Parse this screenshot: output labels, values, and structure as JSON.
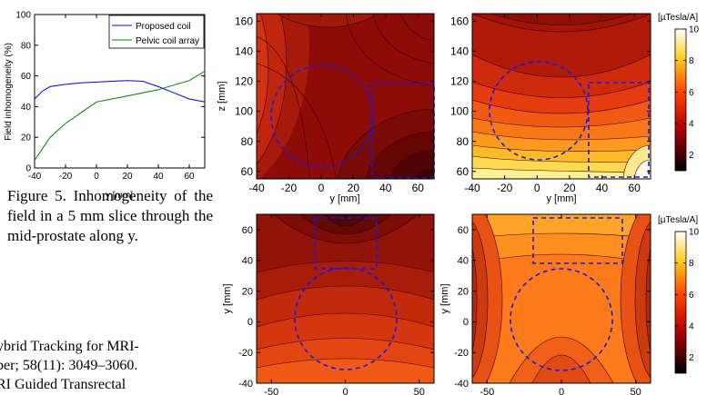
{
  "chart_data": [
    {
      "type": "line",
      "title": "",
      "xlabel": "y [mm]",
      "ylabel": "Field inhomogeneity (%)",
      "xlim": [
        -40,
        70
      ],
      "ylim": [
        0,
        100
      ],
      "x_ticks": [
        "-40",
        "-20",
        "0",
        "20",
        "40",
        "60"
      ],
      "y_ticks": [
        "0",
        "20",
        "40",
        "60",
        "80",
        "100"
      ],
      "legend_position": "top-right",
      "series": [
        {
          "name": "Proposed coil",
          "color": "#0000ff",
          "x": [
            -40,
            -35,
            -30,
            -20,
            -10,
            0,
            10,
            20,
            30,
            40,
            50,
            60,
            70
          ],
          "y": [
            45,
            50,
            53,
            54.5,
            55.5,
            56,
            56.5,
            57,
            56.5,
            53,
            49,
            45,
            43
          ]
        },
        {
          "name": "Pelvic coil array",
          "color": "#008000",
          "x": [
            -40,
            -30,
            -20,
            -10,
            0,
            10,
            20,
            30,
            40,
            50,
            60,
            70
          ],
          "y": [
            5,
            20,
            29,
            36,
            43,
            45,
            47,
            49,
            51,
            54,
            57,
            63
          ]
        }
      ]
    },
    {
      "type": "heatmap",
      "title": "",
      "xlabel": "y [mm]",
      "ylabel": "z [mm]",
      "xlim": [
        -40,
        70
      ],
      "ylim": [
        55,
        165
      ],
      "x_ticks": [
        "-40",
        "-20",
        "0",
        "20",
        "40",
        "60"
      ],
      "y_ticks": [
        "60",
        "80",
        "100",
        "120",
        "140",
        "160"
      ],
      "overlays": [
        "dashed circle",
        "dashed rectangle"
      ]
    },
    {
      "type": "heatmap",
      "title": "",
      "xlabel": "y [mm]",
      "ylabel": "",
      "xlim": [
        -40,
        70
      ],
      "ylim": [
        55,
        165
      ],
      "x_ticks": [
        "-40",
        "-20",
        "0",
        "20",
        "40",
        "60"
      ],
      "y_ticks": [
        "60",
        "80",
        "100",
        "120",
        "140",
        "160"
      ],
      "colorbar": {
        "label": "[µTesla/A]",
        "ticks": [
          "2",
          "4",
          "6",
          "8",
          "10"
        ],
        "range": [
          1,
          10
        ]
      },
      "overlays": [
        "dashed circle",
        "dashed rectangle"
      ]
    },
    {
      "type": "heatmap",
      "title": "",
      "xlabel": "",
      "ylabel": "y [mm]",
      "xlim": [
        -60,
        60
      ],
      "ylim": [
        -40,
        70
      ],
      "x_ticks": [
        "-50",
        "0",
        "50"
      ],
      "y_ticks": [
        "-40",
        "-20",
        "0",
        "20",
        "40",
        "60"
      ],
      "overlays": [
        "dashed circle",
        "dashed rectangle"
      ]
    },
    {
      "type": "heatmap",
      "title": "",
      "xlabel": "",
      "ylabel": "y [mm]",
      "xlim": [
        -60,
        60
      ],
      "ylim": [
        -40,
        70
      ],
      "x_ticks": [
        "-50",
        "0",
        "50"
      ],
      "y_ticks": [
        "-40",
        "-20",
        "0",
        "20",
        "40",
        "60"
      ],
      "colorbar": {
        "label": "[µTesla/A]",
        "ticks": [
          "2",
          "4",
          "6",
          "8",
          "10"
        ],
        "range": [
          1,
          10
        ]
      },
      "overlays": [
        "dashed circle",
        "dashed rectangle"
      ]
    }
  ],
  "caption": "Figure 5. Inhomogeneity of the field in a 5 mm slice through the mid-prostate along y.",
  "references": [
    "ybrid Tracking for MRI-",
    "ber; 58(11): 3049–3060.",
    "RI Guided Transrectal"
  ]
}
